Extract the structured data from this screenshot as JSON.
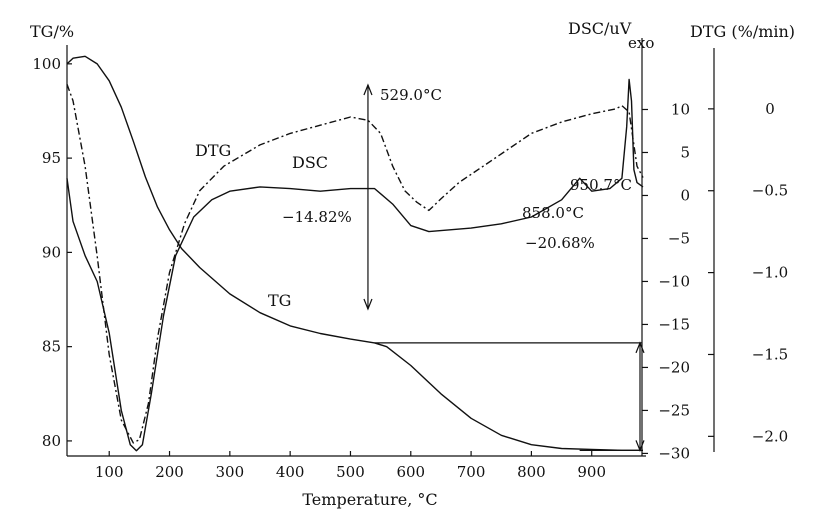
{
  "chart_data": {
    "type": "line",
    "title": "",
    "xlabel": "Temperature, °C",
    "ylabel_left": "TG/%",
    "ylabel_dsc": "DSC/uV",
    "ylabel_dsc_note": "exo",
    "ylabel_right": "DTG (%/min)",
    "xlim": [
      30,
      990
    ],
    "ylim_tg": [
      79.2,
      101
    ],
    "ylim_dsc": [
      -30.3,
      17.5
    ],
    "ylim_dtg": [
      -2.12,
      0.39
    ],
    "x_ticks": [
      100,
      200,
      300,
      400,
      500,
      600,
      700,
      800,
      900
    ],
    "x_tick_labels": [
      "100",
      "200",
      "300",
      "400",
      "500",
      "600",
      "700",
      "800",
      "900"
    ],
    "tg_ticks": [
      80,
      85,
      90,
      95,
      100
    ],
    "tg_tick_labels": [
      "80",
      "85",
      "90",
      "95",
      "100"
    ],
    "dsc_ticks": [
      10,
      5,
      0,
      -5,
      -10,
      -15,
      -20,
      -25,
      -30
    ],
    "dsc_tick_labels": [
      "10",
      "5",
      "0",
      "−5",
      "−10",
      "−15",
      "−20",
      "−25",
      "−30"
    ],
    "dtg_ticks": [
      0,
      -0.5,
      -1.0,
      -1.5,
      -2.0
    ],
    "dtg_tick_labels": [
      "0",
      "−0.5",
      "−1.0",
      "−1.5",
      "−2.0"
    ],
    "series": [
      {
        "name": "TG",
        "axis": "tg",
        "style": "solid",
        "points": [
          [
            30,
            100.0
          ],
          [
            40,
            100.3
          ],
          [
            60,
            100.4
          ],
          [
            80,
            100.0
          ],
          [
            100,
            99.1
          ],
          [
            120,
            97.7
          ],
          [
            140,
            95.9
          ],
          [
            160,
            94.0
          ],
          [
            180,
            92.4
          ],
          [
            200,
            91.2
          ],
          [
            220,
            90.2
          ],
          [
            250,
            89.2
          ],
          [
            300,
            87.8
          ],
          [
            350,
            86.8
          ],
          [
            400,
            86.1
          ],
          [
            450,
            85.7
          ],
          [
            500,
            85.4
          ],
          [
            540,
            85.2
          ],
          [
            560,
            85.0
          ],
          [
            600,
            84.0
          ],
          [
            650,
            82.5
          ],
          [
            700,
            81.2
          ],
          [
            750,
            80.3
          ],
          [
            800,
            79.8
          ],
          [
            850,
            79.6
          ],
          [
            900,
            79.55
          ],
          [
            950,
            79.5
          ],
          [
            985,
            79.5
          ]
        ]
      },
      {
        "name": "DSC",
        "axis": "dsc",
        "style": "solid",
        "points": [
          [
            30,
            2.0
          ],
          [
            40,
            -3.0
          ],
          [
            60,
            -7.0
          ],
          [
            80,
            -10.0
          ],
          [
            100,
            -16.0
          ],
          [
            120,
            -25.0
          ],
          [
            135,
            -29.0
          ],
          [
            145,
            -29.7
          ],
          [
            155,
            -29.0
          ],
          [
            170,
            -23.0
          ],
          [
            190,
            -14.0
          ],
          [
            210,
            -7.0
          ],
          [
            240,
            -2.5
          ],
          [
            270,
            -0.5
          ],
          [
            300,
            0.5
          ],
          [
            350,
            1.0
          ],
          [
            400,
            0.8
          ],
          [
            450,
            0.5
          ],
          [
            500,
            0.8
          ],
          [
            540,
            0.8
          ],
          [
            570,
            -1.0
          ],
          [
            600,
            -3.5
          ],
          [
            630,
            -4.2
          ],
          [
            700,
            -3.8
          ],
          [
            750,
            -3.3
          ],
          [
            800,
            -2.5
          ],
          [
            850,
            -0.5
          ],
          [
            880,
            2.0
          ],
          [
            900,
            0.5
          ],
          [
            930,
            0.8
          ],
          [
            950,
            2.0
          ],
          [
            958,
            8.0
          ],
          [
            962,
            13.5
          ],
          [
            966,
            11.0
          ],
          [
            970,
            3.0
          ],
          [
            975,
            1.5
          ],
          [
            985,
            1.0
          ]
        ]
      },
      {
        "name": "DTG",
        "axis": "dtg",
        "style": "dashdot",
        "points": [
          [
            30,
            0.15
          ],
          [
            40,
            0.05
          ],
          [
            60,
            -0.35
          ],
          [
            80,
            -0.9
          ],
          [
            100,
            -1.5
          ],
          [
            120,
            -1.9
          ],
          [
            140,
            -2.04
          ],
          [
            150,
            -2.02
          ],
          [
            165,
            -1.8
          ],
          [
            180,
            -1.4
          ],
          [
            200,
            -1.0
          ],
          [
            225,
            -0.7
          ],
          [
            250,
            -0.5
          ],
          [
            290,
            -0.35
          ],
          [
            350,
            -0.22
          ],
          [
            400,
            -0.15
          ],
          [
            450,
            -0.1
          ],
          [
            500,
            -0.05
          ],
          [
            529,
            -0.07
          ],
          [
            550,
            -0.15
          ],
          [
            570,
            -0.35
          ],
          [
            590,
            -0.5
          ],
          [
            610,
            -0.57
          ],
          [
            630,
            -0.62
          ],
          [
            650,
            -0.55
          ],
          [
            680,
            -0.45
          ],
          [
            720,
            -0.35
          ],
          [
            760,
            -0.25
          ],
          [
            800,
            -0.15
          ],
          [
            850,
            -0.08
          ],
          [
            900,
            -0.03
          ],
          [
            940,
            0.0
          ],
          [
            950,
            0.02
          ],
          [
            962,
            -0.02
          ],
          [
            975,
            -0.35
          ],
          [
            985,
            -0.42
          ]
        ]
      }
    ],
    "annotations": [
      {
        "text": "529.0°C"
      },
      {
        "text": "−14.82%"
      },
      {
        "text": "858.0°C"
      },
      {
        "text": "−20.68%"
      },
      {
        "text": "950.7°C"
      }
    ],
    "grid": false,
    "legend": "none (curves labeled directly)"
  }
}
